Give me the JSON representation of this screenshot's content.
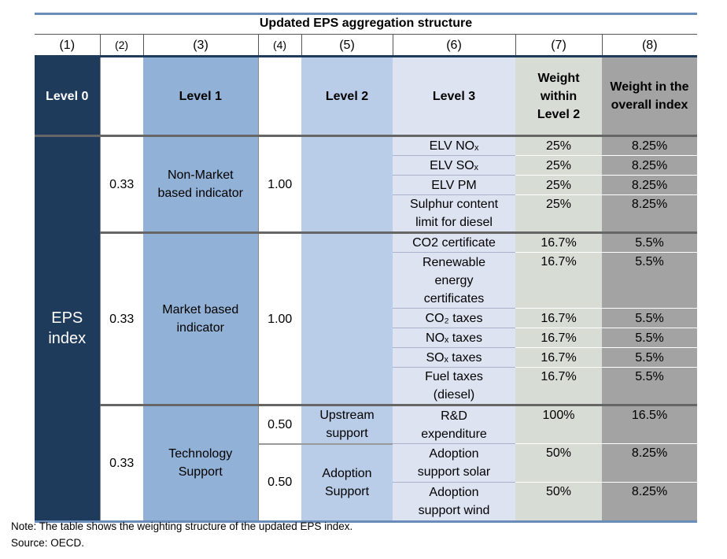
{
  "title": "Updated EPS aggregation structure",
  "column_numbers": [
    "(1)",
    "(2)",
    "(3)",
    "(4)",
    "(5)",
    "(6)",
    "(7)",
    "(8)"
  ],
  "headers": {
    "level0": "Level 0",
    "level1": "Level 1",
    "level2": "Level 2",
    "level3": "Level 3",
    "weight_within_level2": "Weight within Level 2",
    "weight_overall": "Weight in the overall index"
  },
  "eps_index": "EPS index",
  "groups": {
    "non_market": {
      "weight": "0.33",
      "name": "Non-Market based indicator",
      "level2_weight": "1.00",
      "rows": [
        {
          "label": "ELV NOₓ",
          "w7": "25%",
          "w8": "8.25%"
        },
        {
          "label": "ELV SOₓ",
          "w7": "25%",
          "w8": "8.25%"
        },
        {
          "label": "ELV PM",
          "w7": "25%",
          "w8": "8.25%"
        },
        {
          "label": "Sulphur content limit for diesel",
          "w7": "25%",
          "w8": "8.25%"
        }
      ]
    },
    "market": {
      "weight": "0.33",
      "name": "Market based indicator",
      "level2_weight": "1.00",
      "rows": [
        {
          "label": "CO2 certificate",
          "w7": "16.7%",
          "w8": "5.5%"
        },
        {
          "label": "Renewable energy certificates",
          "w7": "16.7%",
          "w8": "5.5%"
        },
        {
          "label": "CO₂ taxes",
          "w7": "16.7%",
          "w8": "5.5%"
        },
        {
          "label": "NOₓ taxes",
          "w7": "16.7%",
          "w8": "5.5%"
        },
        {
          "label": "SOₓ taxes",
          "w7": "16.7%",
          "w8": "5.5%"
        },
        {
          "label": "Fuel taxes (diesel)",
          "w7": "16.7%",
          "w8": "5.5%"
        }
      ]
    },
    "technology": {
      "weight": "0.33",
      "name": "Technology Support",
      "upstream": {
        "weight": "0.50",
        "name": "Upstream support",
        "rows": [
          {
            "label": "R&D expenditure",
            "w7": "100%",
            "w8": "16.5%"
          }
        ]
      },
      "adoption": {
        "weight": "0.50",
        "name": "Adoption Support",
        "rows": [
          {
            "label": "Adoption support solar",
            "w7": "50%",
            "w8": "8.25%"
          },
          {
            "label": "Adoption support wind",
            "w7": "50%",
            "w8": "8.25%"
          }
        ]
      }
    }
  },
  "note": "Note: The table shows the weighting structure of the updated EPS index.",
  "source": "Source: OECD."
}
